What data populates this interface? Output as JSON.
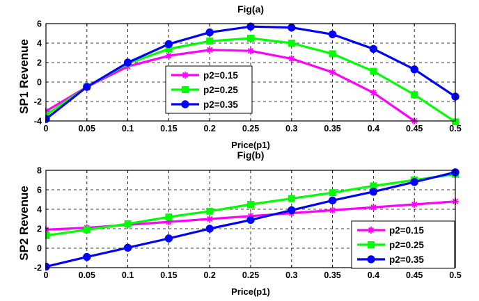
{
  "chart_data": [
    {
      "type": "line",
      "title": "Fig(a)",
      "xlabel": "Price(p1)",
      "ylabel": "SP1 Revenue",
      "x": [
        0,
        0.05,
        0.1,
        0.15,
        0.2,
        0.25,
        0.3,
        0.35,
        0.4,
        0.45,
        0.5
      ],
      "xticks": [
        "0",
        "0.05",
        "0.1",
        "0.15",
        "0.2",
        "0.25",
        "0.3",
        "0.35",
        "0.4",
        "0.45",
        "0.5"
      ],
      "yticks": [
        "-4",
        "-2",
        "0",
        "2",
        "4",
        "6"
      ],
      "xlim": [
        0,
        0.5
      ],
      "ylim": [
        -4,
        6
      ],
      "grid": true,
      "legend_position": "center",
      "series": [
        {
          "name": "p2=0.15",
          "color": "#ff00ff",
          "marker": "star",
          "values": [
            -3.0,
            -0.5,
            1.6,
            2.7,
            3.3,
            3.2,
            2.4,
            1.0,
            -1.1,
            -4.0,
            null
          ]
        },
        {
          "name": "p2=0.25",
          "color": "#00ff00",
          "marker": "square",
          "values": [
            -3.4,
            -0.5,
            1.9,
            3.4,
            4.2,
            4.5,
            4.0,
            2.9,
            1.1,
            -1.3,
            -4.1
          ]
        },
        {
          "name": "p2=0.35",
          "color": "#0000ff",
          "marker": "circle",
          "values": [
            -3.8,
            -0.5,
            2.0,
            3.9,
            5.1,
            5.7,
            5.6,
            4.9,
            3.4,
            1.3,
            -1.5
          ]
        }
      ]
    },
    {
      "type": "line",
      "title": "Fig(b)",
      "xlabel": "Price(p1)",
      "ylabel": "SP2 Revenue",
      "x": [
        0,
        0.05,
        0.1,
        0.15,
        0.2,
        0.25,
        0.3,
        0.35,
        0.4,
        0.45,
        0.5
      ],
      "xticks": [
        "0",
        "0.05",
        "0.1",
        "0.15",
        "0.2",
        "0.25",
        "0.3",
        "0.35",
        "0.4",
        "0.45",
        "0.5"
      ],
      "yticks": [
        "-2",
        "0",
        "2",
        "4",
        "6",
        "8"
      ],
      "xlim": [
        0,
        0.5
      ],
      "ylim": [
        -2,
        8
      ],
      "grid": true,
      "legend_position": "bottom-right",
      "series": [
        {
          "name": "p2=0.15",
          "color": "#ff00ff",
          "marker": "star",
          "values": [
            1.9,
            2.1,
            2.4,
            2.7,
            3.0,
            3.3,
            3.6,
            3.9,
            4.2,
            4.5,
            4.8
          ]
        },
        {
          "name": "p2=0.25",
          "color": "#00ff00",
          "marker": "square",
          "values": [
            1.3,
            1.9,
            2.5,
            3.2,
            3.8,
            4.5,
            5.1,
            5.7,
            6.4,
            7.0,
            7.6
          ]
        },
        {
          "name": "p2=0.35",
          "color": "#0000ff",
          "marker": "circle",
          "values": [
            -1.9,
            -0.9,
            0.05,
            1.0,
            2.0,
            2.9,
            3.9,
            4.9,
            5.8,
            6.8,
            7.8
          ]
        }
      ]
    }
  ]
}
